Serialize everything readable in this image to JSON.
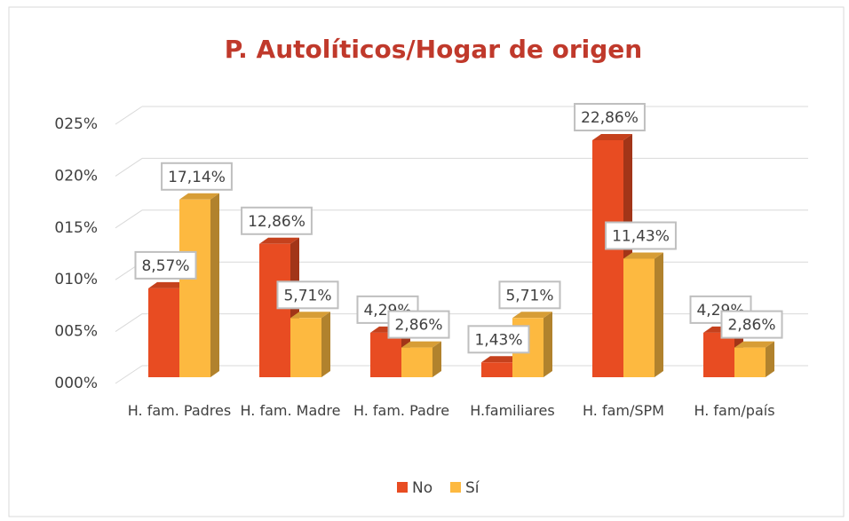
{
  "chart_data": {
    "type": "bar",
    "title": "P. Autolíticos/Hogar de origen",
    "categories": [
      "H. fam. Padres",
      "H. fam. Madre",
      "H. fam. Padre",
      "H.familiares",
      "H. fam/SPM",
      "H. fam/país"
    ],
    "series": [
      {
        "name": "No",
        "color": "#e84c22",
        "values": [
          8.57,
          12.86,
          4.29,
          1.43,
          22.86,
          4.29
        ],
        "value_labels": [
          "8,57%",
          "12,86%",
          "4,29%",
          "1,43%",
          "22,86%",
          "4,29%"
        ]
      },
      {
        "name": "Sí",
        "color": "#fdb940",
        "values": [
          17.14,
          5.71,
          2.86,
          5.71,
          11.43,
          2.86
        ],
        "value_labels": [
          "17,14%",
          "5,71%",
          "2,86%",
          "5,71%",
          "11,43%",
          "2,86%"
        ]
      }
    ],
    "ylim": [
      0,
      25
    ],
    "yticks": [
      {
        "value": 0,
        "label": "000%"
      },
      {
        "value": 5,
        "label": "005%"
      },
      {
        "value": 10,
        "label": "010%"
      },
      {
        "value": 15,
        "label": "015%"
      },
      {
        "value": 20,
        "label": "020%"
      },
      {
        "value": 25,
        "label": "025%"
      }
    ],
    "grid": true,
    "legend": "bottom"
  }
}
